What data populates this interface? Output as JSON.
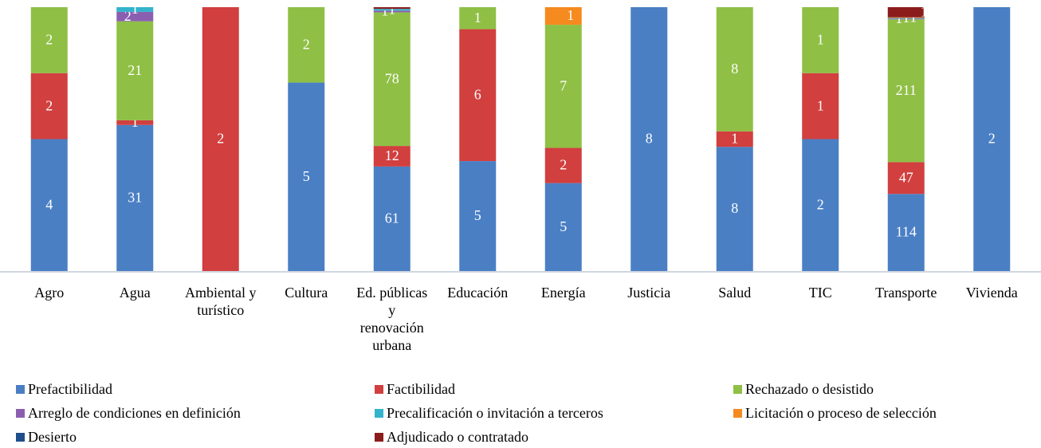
{
  "chart_data": {
    "type": "stacked_bar_100",
    "categories": [
      "Agro",
      "Agua",
      "Ambiental y turístico",
      "Cultura",
      "Ed. públicas y renovación urbana",
      "Educación",
      "Energía",
      "Justicia",
      "Salud",
      "TIC",
      "Transporte",
      "Vivienda"
    ],
    "series": [
      {
        "name": "Prefactibilidad",
        "color": "#4a7fc4",
        "values": [
          4,
          31,
          null,
          5,
          61,
          5,
          5,
          8,
          8,
          2,
          114,
          2
        ]
      },
      {
        "name": "Factibilidad",
        "color": "#d13f3f",
        "values": [
          2,
          1,
          2,
          null,
          12,
          6,
          2,
          null,
          1,
          1,
          47,
          null
        ]
      },
      {
        "name": "Rechazado o desistido",
        "color": "#8fbf45",
        "values": [
          2,
          21,
          null,
          2,
          78,
          1,
          7,
          null,
          8,
          1,
          211,
          null
        ]
      },
      {
        "name": "Arreglo de condiciones en definición",
        "color": "#8a5fb0",
        "values": [
          null,
          2,
          null,
          null,
          1,
          null,
          null,
          null,
          null,
          null,
          1,
          null
        ]
      },
      {
        "name": "Precalificación o invitación a terceros",
        "color": "#33b3cc",
        "values": [
          null,
          1,
          null,
          null,
          1,
          null,
          null,
          null,
          null,
          null,
          1,
          null
        ]
      },
      {
        "name": "Licitación o proceso de selección",
        "color": "#f58a1f",
        "values": [
          null,
          null,
          null,
          null,
          null,
          null,
          1,
          null,
          null,
          null,
          1,
          null
        ]
      },
      {
        "name": "Desierto",
        "color": "#1f4f8a",
        "values": [
          null,
          null,
          null,
          null,
          null,
          null,
          null,
          null,
          null,
          null,
          null,
          null
        ]
      },
      {
        "name": "Adjudicado o contratado",
        "color": "#8b1c1c",
        "values": [
          null,
          null,
          null,
          null,
          1,
          null,
          null,
          null,
          null,
          null,
          15,
          null
        ]
      }
    ]
  }
}
